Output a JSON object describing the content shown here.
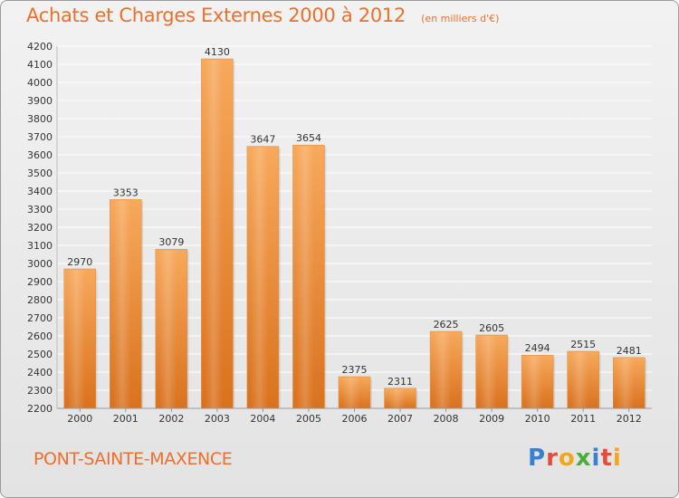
{
  "header": {
    "title": "Achats et Charges Externes 2000 à 2012",
    "unit": "(en milliers d'€)"
  },
  "footer": {
    "place": "PONT-SAINTE-MAXENCE",
    "brand_letters": [
      "P",
      "r",
      "o",
      "x",
      "i",
      "t",
      "i"
    ],
    "brand_colors": [
      "#3a7fd0",
      "#e44c3c",
      "#f2a71b",
      "#4aae3c",
      "#3a7fd0",
      "#e44c3c",
      "#f2a71b"
    ]
  },
  "colors": {
    "title": "#ee6f2a",
    "bar_top": "#f7a95c",
    "bar_bottom": "#d9721e",
    "grid": "#ffffff",
    "text": "#333333"
  },
  "chart_data": {
    "type": "bar",
    "categories": [
      "2000",
      "2001",
      "2002",
      "2003",
      "2004",
      "2005",
      "2006",
      "2007",
      "2008",
      "2009",
      "2010",
      "2011",
      "2012"
    ],
    "values": [
      2970,
      3353,
      3079,
      4130,
      3647,
      3654,
      2375,
      2311,
      2625,
      2605,
      2494,
      2515,
      2481
    ],
    "ylim": [
      2200,
      4200
    ],
    "yticks": [
      2200,
      2300,
      2400,
      2500,
      2600,
      2700,
      2800,
      2900,
      3000,
      3100,
      3200,
      3300,
      3400,
      3500,
      3600,
      3700,
      3800,
      3900,
      4000,
      4100,
      4200
    ],
    "grid": true,
    "data_labels": true
  }
}
